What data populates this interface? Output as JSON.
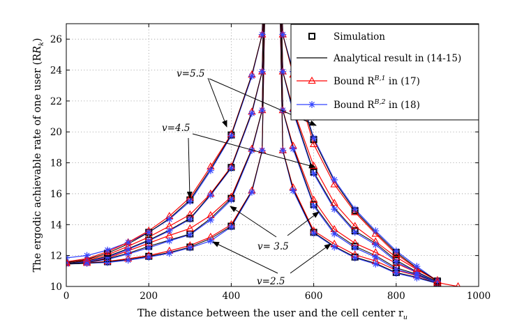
{
  "chart_data": {
    "type": "line",
    "xlabel": "The distance between the user and the cell center r",
    "xlabel_sub": "u",
    "ylabel": "The ergodic achievable rate of one user (R",
    "ylabel_sub": "k",
    "ylabel_close": ")",
    "xlim": [
      0,
      1000
    ],
    "ylim": [
      10,
      27
    ],
    "xticks": [
      0,
      200,
      400,
      600,
      800,
      1000
    ],
    "yticks": [
      10,
      12,
      14,
      16,
      18,
      20,
      22,
      24,
      26
    ],
    "grid": true,
    "legend_position": "top-right",
    "legend": [
      {
        "label": "Simulation",
        "style": "square",
        "color": "#000000"
      },
      {
        "label": "Analytical result in (14-15)",
        "style": "line",
        "color": "#000000"
      },
      {
        "label": "Bound R",
        "sup": "B,1",
        "suffix": " in (17)",
        "style": "triangle",
        "color": "#ff0000"
      },
      {
        "label": "Bound R",
        "sup": "B,2",
        "suffix": " in (18)",
        "style": "star",
        "color": "#3344ff"
      }
    ],
    "annotations": [
      {
        "text": "v=5.5"
      },
      {
        "text": "v=4.5"
      },
      {
        "text": "v= 3.5"
      },
      {
        "text": "v=2.5"
      }
    ],
    "groups": [
      {
        "v": "2.5",
        "x_left": [
          0,
          50,
          100,
          150,
          200,
          250,
          300,
          350,
          400,
          450,
          475
        ],
        "exact_left": [
          11.45,
          11.5,
          11.6,
          11.75,
          11.95,
          12.2,
          12.55,
          13.1,
          13.9,
          16.2,
          18.8
        ],
        "b1_left": [
          11.5,
          11.52,
          11.62,
          11.8,
          12.0,
          12.3,
          12.65,
          13.2,
          14.0,
          16.2,
          18.8
        ],
        "b2_left": [
          11.45,
          11.5,
          11.55,
          11.7,
          11.9,
          12.15,
          12.5,
          12.95,
          13.85,
          16.1,
          18.8
        ],
        "x_right": [
          525,
          550,
          600,
          650,
          700,
          750,
          800,
          850,
          900
        ],
        "exact_right": [
          18.8,
          16.3,
          13.5,
          12.6,
          11.9,
          11.5,
          10.9,
          10.6,
          10.2
        ],
        "b1_right": [
          18.8,
          16.4,
          13.6,
          12.75,
          12.05,
          11.65,
          11.05,
          10.7,
          10.2
        ],
        "b2_right": [
          18.8,
          16.2,
          13.45,
          12.55,
          11.85,
          11.45,
          10.85,
          10.55,
          10.2
        ]
      },
      {
        "v": "3.5",
        "x_left": [
          0,
          50,
          100,
          150,
          200,
          250,
          300,
          350,
          400,
          450,
          475
        ],
        "exact_left": [
          11.45,
          11.55,
          11.8,
          12.15,
          12.6,
          13.0,
          13.4,
          14.4,
          15.7,
          18.9,
          21.4
        ],
        "b1_left": [
          11.5,
          11.6,
          11.85,
          12.3,
          12.8,
          13.3,
          13.75,
          14.6,
          15.8,
          18.9,
          21.4
        ],
        "b2_left": [
          11.5,
          11.55,
          11.75,
          12.1,
          12.5,
          12.95,
          13.35,
          14.3,
          15.6,
          18.8,
          21.4
        ],
        "x_right": [
          525,
          550,
          600,
          650,
          700,
          750,
          800,
          850,
          900
        ],
        "exact_right": [
          21.4,
          19.0,
          15.3,
          13.5,
          12.6,
          12.0,
          11.2,
          10.8,
          10.25
        ],
        "b1_right": [
          21.4,
          19.1,
          15.6,
          13.7,
          12.8,
          12.2,
          11.5,
          10.9,
          10.3
        ],
        "b2_right": [
          21.4,
          18.9,
          15.2,
          13.4,
          12.5,
          11.9,
          11.1,
          10.75,
          10.2
        ]
      },
      {
        "v": "4.5",
        "x_left": [
          0,
          50,
          100,
          150,
          200,
          250,
          300,
          350,
          400,
          450,
          475
        ],
        "exact_left": [
          11.5,
          11.65,
          11.95,
          12.45,
          13.0,
          13.65,
          14.4,
          15.95,
          17.7,
          21.3,
          23.9
        ],
        "b1_left": [
          11.55,
          11.7,
          12.05,
          12.6,
          13.2,
          13.9,
          14.65,
          16.0,
          17.75,
          21.3,
          23.9
        ],
        "b2_left": [
          11.5,
          11.6,
          11.9,
          12.4,
          12.95,
          13.6,
          14.35,
          15.9,
          17.65,
          21.2,
          23.9
        ],
        "x_right": [
          525,
          550,
          600,
          650,
          700,
          750,
          800,
          850,
          900
        ],
        "exact_right": [
          23.9,
          21.4,
          17.4,
          15.1,
          13.6,
          12.8,
          11.7,
          10.95,
          10.3
        ],
        "b1_right": [
          23.9,
          21.5,
          17.8,
          15.4,
          13.9,
          12.9,
          11.9,
          11.1,
          10.35
        ],
        "b2_right": [
          23.9,
          21.3,
          17.3,
          15.0,
          13.5,
          12.7,
          11.6,
          10.9,
          10.25
        ]
      },
      {
        "v": "5.5",
        "x_left": [
          0,
          50,
          100,
          150,
          200,
          250,
          300,
          350,
          400,
          450,
          475
        ],
        "exact_left": [
          11.55,
          11.75,
          12.15,
          12.75,
          13.5,
          14.4,
          15.6,
          17.6,
          19.8,
          23.7,
          26.3
        ],
        "b1_left": [
          11.6,
          11.8,
          12.25,
          12.85,
          13.6,
          14.55,
          15.75,
          17.75,
          19.85,
          23.7,
          26.3
        ],
        "b2_left": [
          11.85,
          12.0,
          12.35,
          12.85,
          13.5,
          14.35,
          15.5,
          17.5,
          19.75,
          23.6,
          26.3
        ],
        "x_right": [
          525,
          550,
          600,
          650,
          700,
          750,
          800,
          850,
          900
        ],
        "exact_right": [
          26.3,
          23.8,
          19.5,
          16.8,
          14.9,
          13.5,
          12.2,
          11.2,
          10.35
        ],
        "b1_right": [
          26.3,
          23.7,
          19.2,
          16.6,
          14.8,
          13.4,
          12.1,
          11.15,
          10.4
        ],
        "b2_right": [
          26.3,
          23.9,
          19.6,
          16.9,
          15.0,
          13.6,
          12.3,
          11.3,
          10.35
        ]
      }
    ],
    "red_tail": {
      "x": [
        900,
        950
      ],
      "y": [
        10.25,
        10.0
      ]
    }
  }
}
